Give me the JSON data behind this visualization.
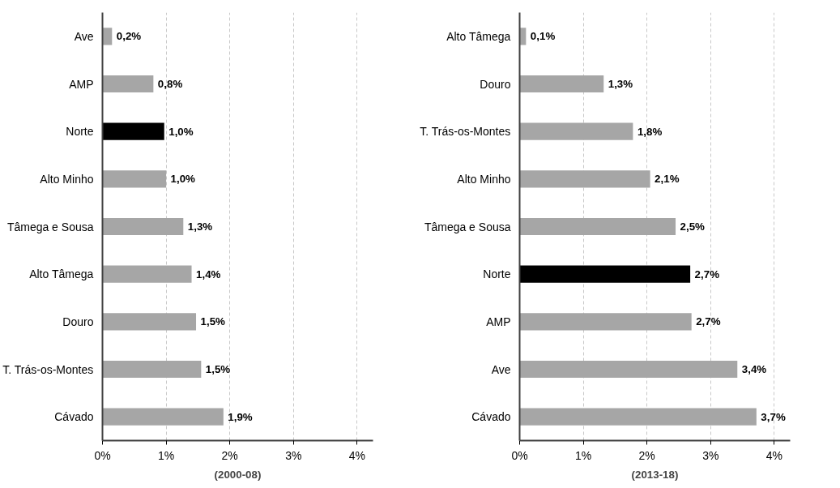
{
  "chart_data": [
    {
      "type": "bar",
      "orientation": "horizontal",
      "xlabel": "(2000-08)",
      "categories": [
        "Ave",
        "AMP",
        "Norte",
        "Alto Minho",
        "Tâmega e Sousa",
        "Alto Tâmega",
        "Douro",
        "T. Trás-os-Montes",
        "Cávado"
      ],
      "values": [
        0.15,
        0.8,
        0.97,
        1.0,
        1.27,
        1.4,
        1.47,
        1.55,
        1.9
      ],
      "value_labels": [
        "0,2%",
        "0,8%",
        "1,0%",
        "1,0%",
        "1,3%",
        "1,4%",
        "1,5%",
        "1,5%",
        "1,9%"
      ],
      "colors": [
        "#a6a6a6",
        "#a6a6a6",
        "#000000",
        "#a6a6a6",
        "#a6a6a6",
        "#a6a6a6",
        "#a6a6a6",
        "#a6a6a6",
        "#a6a6a6"
      ],
      "xlim": [
        0,
        4.25
      ],
      "xticks": [
        {
          "value": 0,
          "label": "0%"
        },
        {
          "value": 1,
          "label": "1%"
        },
        {
          "value": 2,
          "label": "2%"
        },
        {
          "value": 3,
          "label": "3%"
        },
        {
          "value": 4,
          "label": "4%"
        }
      ],
      "grid": "x"
    },
    {
      "type": "bar",
      "orientation": "horizontal",
      "xlabel": "(2013-18)",
      "categories": [
        "Alto Tâmega",
        "Douro",
        "T. Trás-os-Montes",
        "Alto Minho",
        "Tâmega e Sousa",
        "Norte",
        "AMP",
        "Ave",
        "Cávado"
      ],
      "values": [
        0.1,
        1.32,
        1.78,
        2.05,
        2.45,
        2.68,
        2.7,
        3.42,
        3.72
      ],
      "value_labels": [
        "0,1%",
        "1,3%",
        "1,8%",
        "2,1%",
        "2,5%",
        "2,7%",
        "2,7%",
        "3,4%",
        "3,7%"
      ],
      "colors": [
        "#a6a6a6",
        "#a6a6a6",
        "#a6a6a6",
        "#a6a6a6",
        "#a6a6a6",
        "#000000",
        "#a6a6a6",
        "#a6a6a6",
        "#a6a6a6"
      ],
      "xlim": [
        0,
        4.25
      ],
      "xticks": [
        {
          "value": 0,
          "label": "0%"
        },
        {
          "value": 1,
          "label": "1%"
        },
        {
          "value": 2,
          "label": "2%"
        },
        {
          "value": 3,
          "label": "3%"
        },
        {
          "value": 4,
          "label": "4%"
        }
      ],
      "grid": "x"
    }
  ]
}
